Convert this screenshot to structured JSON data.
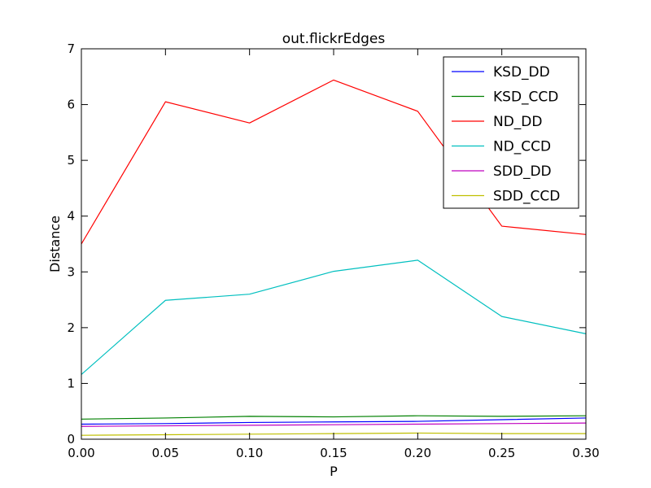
{
  "chart_data": {
    "type": "line",
    "title": "out.flickrEdges",
    "xlabel": "P",
    "ylabel": "Distance",
    "xlim": [
      0,
      0.3
    ],
    "ylim": [
      0,
      7
    ],
    "x": [
      0.0,
      0.05,
      0.1,
      0.15,
      0.2,
      0.25,
      0.3
    ],
    "x_ticks": [
      0.0,
      0.05,
      0.1,
      0.15,
      0.2,
      0.25,
      0.3
    ],
    "x_tick_labels": [
      "0.00",
      "0.05",
      "0.10",
      "0.15",
      "0.20",
      "0.25",
      "0.30"
    ],
    "y_ticks": [
      0,
      1,
      2,
      3,
      4,
      5,
      6,
      7
    ],
    "y_tick_labels": [
      "0",
      "1",
      "2",
      "3",
      "4",
      "5",
      "6",
      "7"
    ],
    "grid": false,
    "legend_position": "top-right",
    "series": [
      {
        "name": "KSD_DD",
        "color": "#0000ff",
        "values": [
          0.27,
          0.28,
          0.3,
          0.31,
          0.32,
          0.35,
          0.38
        ]
      },
      {
        "name": "KSD_CCD",
        "color": "#008000",
        "values": [
          0.36,
          0.38,
          0.41,
          0.4,
          0.42,
          0.41,
          0.42
        ]
      },
      {
        "name": "ND_DD",
        "color": "#ff0000",
        "values": [
          3.5,
          6.05,
          5.67,
          6.44,
          5.88,
          3.82,
          3.67
        ]
      },
      {
        "name": "ND_CCD",
        "color": "#00bfbf",
        "values": [
          1.16,
          2.49,
          2.6,
          3.01,
          3.21,
          2.2,
          1.89
        ]
      },
      {
        "name": "SDD_DD",
        "color": "#bf00bf",
        "values": [
          0.23,
          0.24,
          0.25,
          0.26,
          0.27,
          0.28,
          0.29
        ]
      },
      {
        "name": "SDD_CCD",
        "color": "#bfbf00",
        "values": [
          0.07,
          0.08,
          0.09,
          0.1,
          0.11,
          0.1,
          0.1
        ]
      }
    ]
  }
}
